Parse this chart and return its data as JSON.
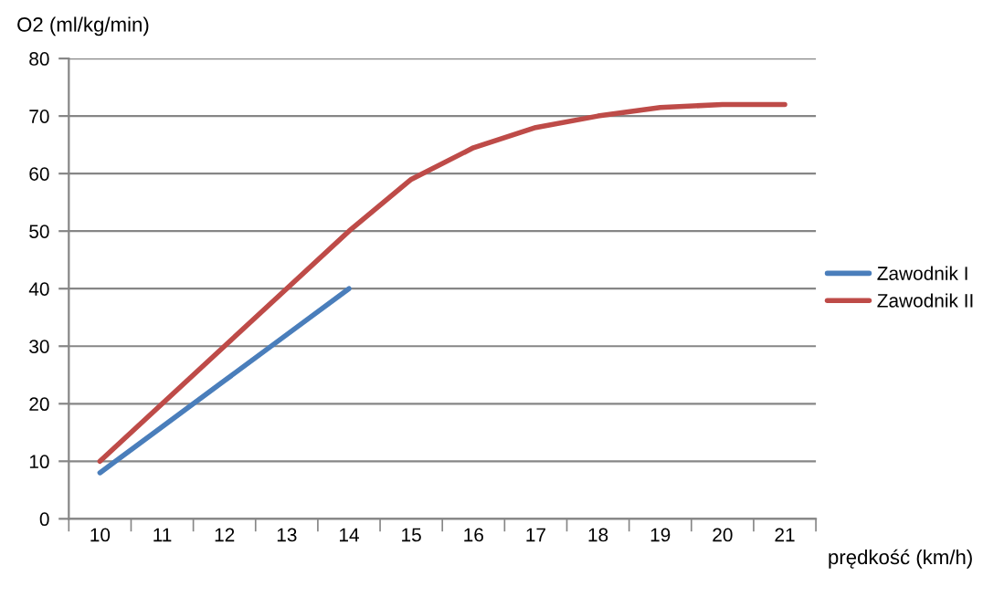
{
  "chart_data": {
    "type": "line",
    "ylabel": "O2 (ml/kg/min)",
    "xlabel": "prędkość (km/h)",
    "categories": [
      "10",
      "11",
      "12",
      "13",
      "14",
      "15",
      "16",
      "17",
      "18",
      "19",
      "20",
      "21"
    ],
    "series": [
      {
        "name": "Zawodnik I",
        "color": "#4a7ebb",
        "values": [
          8,
          16,
          24,
          32,
          40,
          null,
          null,
          null,
          null,
          null,
          null,
          null
        ]
      },
      {
        "name": "Zawodnik II",
        "color": "#be4b48",
        "values": [
          10,
          20,
          30,
          40,
          50,
          59,
          64.5,
          68,
          70,
          71.5,
          72,
          72
        ]
      }
    ],
    "ylim": [
      0,
      80
    ],
    "yticks": [
      0,
      10,
      20,
      30,
      40,
      50,
      60,
      70,
      80
    ],
    "grid": "y",
    "legend": "right",
    "marker": "none",
    "line_style": "solid"
  }
}
